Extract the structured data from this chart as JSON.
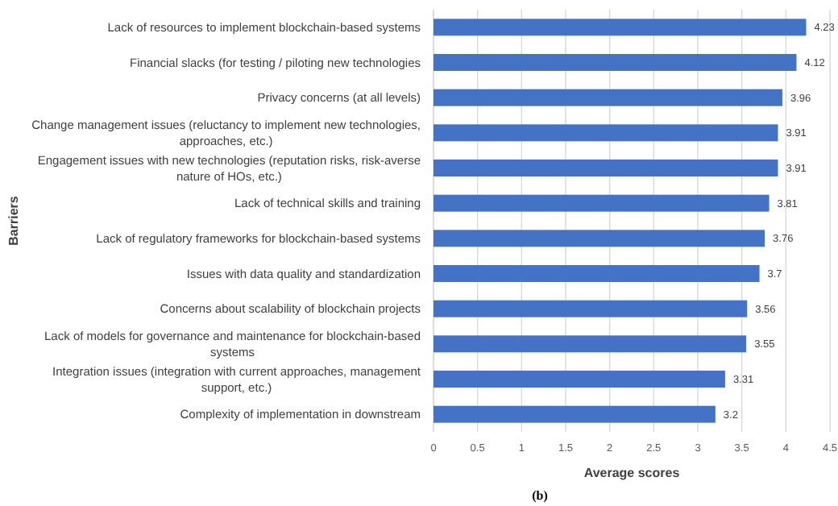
{
  "chart_data": {
    "type": "bar",
    "orientation": "horizontal",
    "xlabel": "Average scores",
    "ylabel": "Barriers",
    "annotations": [
      "(b)"
    ],
    "categories": [
      "Lack of resources to implement blockchain-based systems",
      "Financial slacks (for testing / piloting new technologies",
      "Privacy concerns (at all levels)",
      "Change management issues (reluctancy to implement new technologies, approaches, etc.)",
      "Engagement issues with new technologies (reputation risks, risk-averse nature of HOs, etc.)",
      "Lack of technical skills and training",
      "Lack of regulatory frameworks for blockchain-based systems",
      "Issues with data quality and standardization",
      "Concerns about scalability of blockchain projects",
      "Lack of models for governance and maintenance for blockchain-based systems",
      "Integration issues (integration with current approaches, management support, etc.)",
      "Complexity of implementation in downstream"
    ],
    "values": [
      4.23,
      4.12,
      3.96,
      3.91,
      3.91,
      3.81,
      3.76,
      3.7,
      3.56,
      3.55,
      3.31,
      3.2
    ],
    "color": "#4472c4",
    "data_labels": true,
    "xlim": [
      0,
      4.5
    ],
    "xticks": [
      0,
      0.5,
      1,
      1.5,
      2,
      2.5,
      3,
      3.5,
      4,
      4.5
    ],
    "grid": "x"
  }
}
